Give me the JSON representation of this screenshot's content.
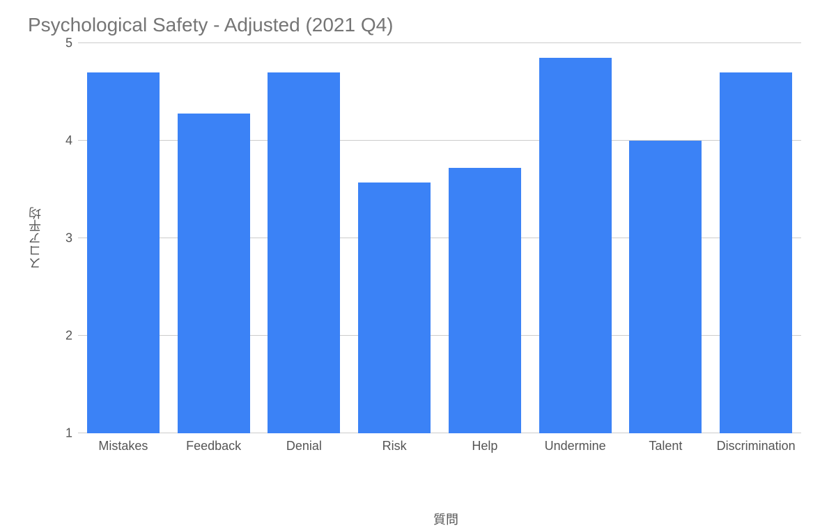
{
  "chart": {
    "type": "bar",
    "title": "Psychological Safety - Adjusted (2021 Q4)",
    "title_color": "#757575",
    "title_fontsize": 28,
    "x_axis_label": "質問",
    "y_axis_label": "スコア平均",
    "axis_label_fontsize": 18,
    "axis_label_color": "#555555",
    "tick_fontsize": 18,
    "tick_color": "#555555",
    "background_color": "#ffffff",
    "grid_color": "#cccccc",
    "bar_color": "#3b82f6",
    "bar_width_ratio": 0.8,
    "ylim": [
      1,
      5
    ],
    "ytick_step": 1,
    "yticks": [
      1,
      2,
      3,
      4,
      5
    ],
    "categories": [
      "Mistakes",
      "Feedback",
      "Denial",
      "Risk",
      "Help",
      "Undermine",
      "Talent",
      "Discrimination"
    ],
    "values": [
      4.7,
      4.28,
      4.7,
      3.57,
      3.72,
      4.85,
      4.0,
      4.7
    ]
  }
}
